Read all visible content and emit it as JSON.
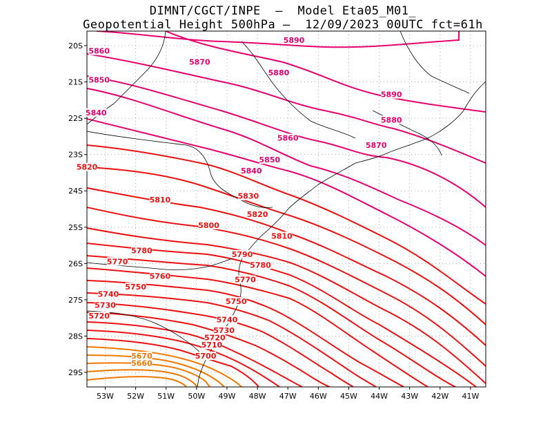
{
  "header": {
    "line1": "DIMNT/CGCT/INPE  —  Model Eta05_M01_",
    "line2": "Geopotential Height 500hPa —  12/09/2023 00UTC fct=61h"
  },
  "map": {
    "lon_range": [
      -53.6,
      -40.5
    ],
    "lat_range": [
      -29.4,
      -19.6
    ],
    "lat_labels": [
      "20S",
      "21S",
      "22S",
      "23S",
      "24S",
      "25S",
      "26S",
      "27S",
      "28S",
      "29S"
    ],
    "lon_labels": [
      "53W",
      "52W",
      "51W",
      "50W",
      "49W",
      "48W",
      "47W",
      "46W",
      "45W",
      "44W",
      "43W",
      "42W",
      "41W"
    ],
    "grid": "dotted",
    "colors": {
      "magenta": "#e8006e",
      "red": "#ee1010",
      "orange": "#f07800",
      "coast": "#000000"
    },
    "contour_labels": [
      {
        "text": "5890",
        "lon": -46.8,
        "lat": -19.9,
        "color": "#e8006e"
      },
      {
        "text": "5890",
        "lon": -43.6,
        "lat": -21.4,
        "color": "#e8006e"
      },
      {
        "text": "5880",
        "lon": -47.3,
        "lat": -20.8,
        "color": "#e8006e"
      },
      {
        "text": "5880",
        "lon": -43.6,
        "lat": -22.1,
        "color": "#e8006e"
      },
      {
        "text": "5870",
        "lon": -49.9,
        "lat": -20.5,
        "color": "#e8006e"
      },
      {
        "text": "5870",
        "lon": -44.1,
        "lat": -22.8,
        "color": "#e8006e"
      },
      {
        "text": "5860",
        "lon": -53.2,
        "lat": -20.2,
        "color": "#e8006e"
      },
      {
        "text": "5860",
        "lon": -47.0,
        "lat": -22.6,
        "color": "#e8006e"
      },
      {
        "text": "5850",
        "lon": -53.2,
        "lat": -21.0,
        "color": "#e8006e"
      },
      {
        "text": "5850",
        "lon": -47.6,
        "lat": -23.2,
        "color": "#e8006e"
      },
      {
        "text": "5840",
        "lon": -53.3,
        "lat": -21.9,
        "color": "#e8006e"
      },
      {
        "text": "5840",
        "lon": -48.2,
        "lat": -23.5,
        "color": "#e8006e"
      },
      {
        "text": "5830",
        "lon": -48.3,
        "lat": -24.2,
        "color": "#ee1010"
      },
      {
        "text": "5820",
        "lon": -53.6,
        "lat": -23.4,
        "color": "#ee1010"
      },
      {
        "text": "5820",
        "lon": -48.0,
        "lat": -24.7,
        "color": "#ee1010"
      },
      {
        "text": "5810",
        "lon": -51.2,
        "lat": -24.3,
        "color": "#ee1010"
      },
      {
        "text": "5810",
        "lon": -47.2,
        "lat": -25.3,
        "color": "#ee1010"
      },
      {
        "text": "5800",
        "lon": -49.6,
        "lat": -25.0,
        "color": "#ee1010"
      },
      {
        "text": "5790",
        "lon": -48.5,
        "lat": -25.8,
        "color": "#ee1010"
      },
      {
        "text": "5780",
        "lon": -51.8,
        "lat": -25.7,
        "color": "#ee1010"
      },
      {
        "text": "5780",
        "lon": -47.9,
        "lat": -26.1,
        "color": "#ee1010"
      },
      {
        "text": "5770",
        "lon": -52.6,
        "lat": -26.0,
        "color": "#ee1010"
      },
      {
        "text": "5770",
        "lon": -48.4,
        "lat": -26.5,
        "color": "#ee1010"
      },
      {
        "text": "5760",
        "lon": -51.2,
        "lat": -26.4,
        "color": "#ee1010"
      },
      {
        "text": "5750",
        "lon": -52.0,
        "lat": -26.7,
        "color": "#ee1010"
      },
      {
        "text": "5750",
        "lon": -48.7,
        "lat": -27.1,
        "color": "#ee1010"
      },
      {
        "text": "5740",
        "lon": -52.9,
        "lat": -26.9,
        "color": "#ee1010"
      },
      {
        "text": "5740",
        "lon": -49.0,
        "lat": -27.6,
        "color": "#ee1010"
      },
      {
        "text": "5730",
        "lon": -53.0,
        "lat": -27.2,
        "color": "#ee1010"
      },
      {
        "text": "5730",
        "lon": -49.1,
        "lat": -27.9,
        "color": "#ee1010"
      },
      {
        "text": "5720",
        "lon": -53.2,
        "lat": -27.5,
        "color": "#ee1010"
      },
      {
        "text": "5720",
        "lon": -49.4,
        "lat": -28.1,
        "color": "#ee1010"
      },
      {
        "text": "5710",
        "lon": -49.5,
        "lat": -28.3,
        "color": "#ee1010"
      },
      {
        "text": "5700",
        "lon": -49.7,
        "lat": -28.6,
        "color": "#ee1010"
      },
      {
        "text": "5670",
        "lon": -51.8,
        "lat": -28.6,
        "color": "#f07800"
      },
      {
        "text": "5660",
        "lon": -51.8,
        "lat": -28.8,
        "color": "#f07800"
      }
    ]
  }
}
